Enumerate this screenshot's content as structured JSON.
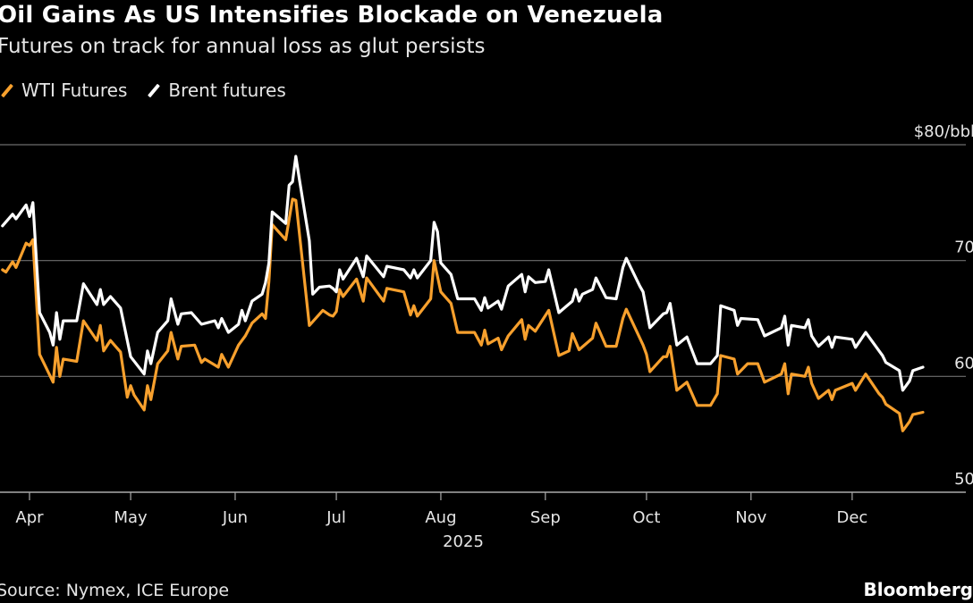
{
  "header": {
    "title": "Oil Gains As US Intensifies Blockade on Venezuela",
    "subtitle": "Futures on track for annual loss as glut persists"
  },
  "footer": {
    "source": "Source: Nymex, ICE Europe",
    "brand": "Bloomberg"
  },
  "chart_data": {
    "type": "line",
    "title": "Oil Gains As US Intensifies Blockade on Venezuela",
    "subtitle": "Futures on track for annual loss as glut persists",
    "xlabel": "2025",
    "ylabel": "",
    "y_unit_label": "$80/bbl",
    "ylim": [
      50,
      80
    ],
    "yticks": [
      80,
      70,
      60,
      50
    ],
    "ytick_labels": [
      "$80/bbl",
      "70",
      "60",
      "50"
    ],
    "xlim": [
      "2025-03-24",
      "2025-12-22"
    ],
    "xticks": [
      "2025-04-01",
      "2025-05-01",
      "2025-06-01",
      "2025-07-01",
      "2025-08-01",
      "2025-09-01",
      "2025-10-01",
      "2025-11-01",
      "2025-12-01"
    ],
    "xtick_labels": [
      "Apr",
      "May",
      "Jun",
      "Jul",
      "Aug",
      "Sep",
      "Oct",
      "Nov",
      "Dec"
    ],
    "grid": true,
    "legend_position": "top-left",
    "series": [
      {
        "name": "WTI Futures",
        "color": "#f7a02d",
        "points": [
          [
            "2025-03-24",
            69.2
          ],
          [
            "2025-03-25",
            69.0
          ],
          [
            "2025-03-27",
            69.9
          ],
          [
            "2025-03-28",
            69.4
          ],
          [
            "2025-03-31",
            71.5
          ],
          [
            "2025-04-01",
            71.3
          ],
          [
            "2025-04-02",
            71.8
          ],
          [
            "2025-04-04",
            61.9
          ],
          [
            "2025-04-06",
            60.7
          ],
          [
            "2025-04-08",
            59.5
          ],
          [
            "2025-04-09",
            62.5
          ],
          [
            "2025-04-10",
            60.0
          ],
          [
            "2025-04-11",
            61.5
          ],
          [
            "2025-04-15",
            61.3
          ],
          [
            "2025-04-17",
            64.8
          ],
          [
            "2025-04-21",
            63.1
          ],
          [
            "2025-04-22",
            64.4
          ],
          [
            "2025-04-23",
            62.2
          ],
          [
            "2025-04-25",
            63.1
          ],
          [
            "2025-04-28",
            62.1
          ],
          [
            "2025-04-30",
            58.2
          ],
          [
            "2025-05-01",
            59.2
          ],
          [
            "2025-05-02",
            58.4
          ],
          [
            "2025-05-05",
            57.1
          ],
          [
            "2025-05-06",
            59.2
          ],
          [
            "2025-05-07",
            58.0
          ],
          [
            "2025-05-09",
            61.1
          ],
          [
            "2025-05-12",
            62.2
          ],
          [
            "2025-05-13",
            63.8
          ],
          [
            "2025-05-15",
            61.5
          ],
          [
            "2025-05-16",
            62.6
          ],
          [
            "2025-05-20",
            62.7
          ],
          [
            "2025-05-22",
            61.2
          ],
          [
            "2025-05-23",
            61.5
          ],
          [
            "2025-05-27",
            60.8
          ],
          [
            "2025-05-28",
            61.9
          ],
          [
            "2025-05-30",
            60.8
          ],
          [
            "2025-06-02",
            62.7
          ],
          [
            "2025-06-04",
            63.5
          ],
          [
            "2025-06-06",
            64.6
          ],
          [
            "2025-06-09",
            65.4
          ],
          [
            "2025-06-10",
            65.0
          ],
          [
            "2025-06-11",
            68.2
          ],
          [
            "2025-06-12",
            73.1
          ],
          [
            "2025-06-16",
            71.8
          ],
          [
            "2025-06-18",
            75.3
          ],
          [
            "2025-06-19",
            75.2
          ],
          [
            "2025-06-23",
            64.4
          ],
          [
            "2025-06-27",
            65.7
          ],
          [
            "2025-06-29",
            65.3
          ],
          [
            "2025-06-30",
            65.2
          ],
          [
            "2025-07-01",
            65.6
          ],
          [
            "2025-07-02",
            67.5
          ],
          [
            "2025-07-03",
            66.9
          ],
          [
            "2025-07-07",
            68.4
          ],
          [
            "2025-07-09",
            66.5
          ],
          [
            "2025-07-10",
            68.5
          ],
          [
            "2025-07-15",
            66.5
          ],
          [
            "2025-07-16",
            67.6
          ],
          [
            "2025-07-21",
            67.3
          ],
          [
            "2025-07-23",
            65.3
          ],
          [
            "2025-07-24",
            66.1
          ],
          [
            "2025-07-25",
            65.2
          ],
          [
            "2025-07-29",
            66.7
          ],
          [
            "2025-07-30",
            70.0
          ],
          [
            "2025-08-01",
            67.3
          ],
          [
            "2025-08-04",
            66.3
          ],
          [
            "2025-08-06",
            63.8
          ],
          [
            "2025-08-11",
            63.8
          ],
          [
            "2025-08-13",
            62.7
          ],
          [
            "2025-08-14",
            64.0
          ],
          [
            "2025-08-15",
            62.8
          ],
          [
            "2025-08-18",
            63.3
          ],
          [
            "2025-08-19",
            62.3
          ],
          [
            "2025-08-21",
            63.5
          ],
          [
            "2025-08-25",
            64.9
          ],
          [
            "2025-08-26",
            63.2
          ],
          [
            "2025-08-27",
            64.4
          ],
          [
            "2025-08-29",
            63.9
          ],
          [
            "2025-09-02",
            65.7
          ],
          [
            "2025-09-05",
            61.8
          ],
          [
            "2025-09-08",
            62.2
          ],
          [
            "2025-09-09",
            63.7
          ],
          [
            "2025-09-11",
            62.3
          ],
          [
            "2025-09-15",
            63.3
          ],
          [
            "2025-09-16",
            64.6
          ],
          [
            "2025-09-19",
            62.6
          ],
          [
            "2025-09-22",
            62.6
          ],
          [
            "2025-09-24",
            65.0
          ],
          [
            "2025-09-25",
            65.8
          ],
          [
            "2025-09-30",
            62.7
          ],
          [
            "2025-10-01",
            61.9
          ],
          [
            "2025-10-02",
            60.4
          ],
          [
            "2025-10-06",
            61.7
          ],
          [
            "2025-10-07",
            61.7
          ],
          [
            "2025-10-08",
            62.6
          ],
          [
            "2025-10-10",
            58.8
          ],
          [
            "2025-10-13",
            59.5
          ],
          [
            "2025-10-16",
            57.5
          ],
          [
            "2025-10-20",
            57.5
          ],
          [
            "2025-10-22",
            58.5
          ],
          [
            "2025-10-23",
            61.8
          ],
          [
            "2025-10-27",
            61.5
          ],
          [
            "2025-10-28",
            60.2
          ],
          [
            "2025-10-31",
            61.1
          ],
          [
            "2025-11-03",
            61.1
          ],
          [
            "2025-11-05",
            59.5
          ],
          [
            "2025-11-10",
            60.2
          ],
          [
            "2025-11-11",
            61.1
          ],
          [
            "2025-11-12",
            58.5
          ],
          [
            "2025-11-13",
            60.2
          ],
          [
            "2025-11-17",
            60.0
          ],
          [
            "2025-11-18",
            60.8
          ],
          [
            "2025-11-19",
            59.4
          ],
          [
            "2025-11-21",
            58.1
          ],
          [
            "2025-11-24",
            58.8
          ],
          [
            "2025-11-25",
            58.0
          ],
          [
            "2025-11-26",
            58.8
          ],
          [
            "2025-12-01",
            59.4
          ],
          [
            "2025-12-02",
            58.8
          ],
          [
            "2025-12-05",
            60.2
          ],
          [
            "2025-12-09",
            58.5
          ],
          [
            "2025-12-10",
            58.2
          ],
          [
            "2025-12-11",
            57.6
          ],
          [
            "2025-12-15",
            56.8
          ],
          [
            "2025-12-16",
            55.3
          ],
          [
            "2025-12-18",
            56.1
          ],
          [
            "2025-12-19",
            56.7
          ],
          [
            "2025-12-22",
            56.9
          ]
        ]
      },
      {
        "name": "Brent futures",
        "color": "#ffffff",
        "points": [
          [
            "2025-03-24",
            73.0
          ],
          [
            "2025-03-27",
            74.0
          ],
          [
            "2025-03-28",
            73.6
          ],
          [
            "2025-03-31",
            74.8
          ],
          [
            "2025-04-01",
            73.8
          ],
          [
            "2025-04-02",
            75.0
          ],
          [
            "2025-04-04",
            65.5
          ],
          [
            "2025-04-07",
            63.8
          ],
          [
            "2025-04-08",
            62.7
          ],
          [
            "2025-04-09",
            65.5
          ],
          [
            "2025-04-10",
            63.2
          ],
          [
            "2025-04-11",
            64.8
          ],
          [
            "2025-04-15",
            64.8
          ],
          [
            "2025-04-17",
            68.0
          ],
          [
            "2025-04-21",
            66.2
          ],
          [
            "2025-04-22",
            67.5
          ],
          [
            "2025-04-23",
            66.2
          ],
          [
            "2025-04-25",
            66.9
          ],
          [
            "2025-04-28",
            65.9
          ],
          [
            "2025-05-01",
            61.7
          ],
          [
            "2025-05-05",
            60.2
          ],
          [
            "2025-05-06",
            62.2
          ],
          [
            "2025-05-07",
            61.1
          ],
          [
            "2025-05-09",
            63.8
          ],
          [
            "2025-05-12",
            64.8
          ],
          [
            "2025-05-13",
            66.7
          ],
          [
            "2025-05-15",
            64.5
          ],
          [
            "2025-05-16",
            65.4
          ],
          [
            "2025-05-19",
            65.5
          ],
          [
            "2025-05-22",
            64.5
          ],
          [
            "2025-05-26",
            64.8
          ],
          [
            "2025-05-27",
            64.2
          ],
          [
            "2025-05-28",
            65.0
          ],
          [
            "2025-05-30",
            63.8
          ],
          [
            "2025-06-02",
            64.5
          ],
          [
            "2025-06-03",
            65.7
          ],
          [
            "2025-06-04",
            64.8
          ],
          [
            "2025-06-06",
            66.5
          ],
          [
            "2025-06-09",
            67.1
          ],
          [
            "2025-06-10",
            68.1
          ],
          [
            "2025-06-11",
            69.8
          ],
          [
            "2025-06-12",
            74.2
          ],
          [
            "2025-06-16",
            73.2
          ],
          [
            "2025-06-17",
            76.5
          ],
          [
            "2025-06-18",
            76.8
          ],
          [
            "2025-06-19",
            79.0
          ],
          [
            "2025-06-20",
            77.1
          ],
          [
            "2025-06-23",
            71.7
          ],
          [
            "2025-06-24",
            67.1
          ],
          [
            "2025-06-26",
            67.7
          ],
          [
            "2025-06-29",
            67.8
          ],
          [
            "2025-06-30",
            67.6
          ],
          [
            "2025-07-01",
            67.3
          ],
          [
            "2025-07-02",
            69.2
          ],
          [
            "2025-07-03",
            68.4
          ],
          [
            "2025-07-07",
            70.2
          ],
          [
            "2025-07-09",
            68.6
          ],
          [
            "2025-07-10",
            70.4
          ],
          [
            "2025-07-15",
            68.6
          ],
          [
            "2025-07-16",
            69.5
          ],
          [
            "2025-07-21",
            69.2
          ],
          [
            "2025-07-23",
            68.5
          ],
          [
            "2025-07-24",
            69.2
          ],
          [
            "2025-07-25",
            68.5
          ],
          [
            "2025-07-29",
            70.0
          ],
          [
            "2025-07-30",
            73.3
          ],
          [
            "2025-07-31",
            72.5
          ],
          [
            "2025-08-01",
            69.8
          ],
          [
            "2025-08-04",
            68.8
          ],
          [
            "2025-08-06",
            66.7
          ],
          [
            "2025-08-11",
            66.7
          ],
          [
            "2025-08-13",
            65.7
          ],
          [
            "2025-08-14",
            66.8
          ],
          [
            "2025-08-15",
            65.9
          ],
          [
            "2025-08-18",
            66.5
          ],
          [
            "2025-08-19",
            65.8
          ],
          [
            "2025-08-21",
            67.8
          ],
          [
            "2025-08-25",
            68.8
          ],
          [
            "2025-08-26",
            67.3
          ],
          [
            "2025-08-27",
            68.6
          ],
          [
            "2025-08-29",
            68.1
          ],
          [
            "2025-09-01",
            68.2
          ],
          [
            "2025-09-02",
            69.2
          ],
          [
            "2025-09-05",
            65.5
          ],
          [
            "2025-09-09",
            66.5
          ],
          [
            "2025-09-10",
            67.5
          ],
          [
            "2025-09-11",
            66.5
          ],
          [
            "2025-09-12",
            67.1
          ],
          [
            "2025-09-15",
            67.5
          ],
          [
            "2025-09-16",
            68.5
          ],
          [
            "2025-09-19",
            66.8
          ],
          [
            "2025-09-22",
            66.7
          ],
          [
            "2025-09-24",
            69.4
          ],
          [
            "2025-09-25",
            70.2
          ],
          [
            "2025-09-29",
            67.8
          ],
          [
            "2025-09-30",
            67.3
          ],
          [
            "2025-10-02",
            64.2
          ],
          [
            "2025-10-06",
            65.4
          ],
          [
            "2025-10-07",
            65.5
          ],
          [
            "2025-10-08",
            66.3
          ],
          [
            "2025-10-10",
            62.7
          ],
          [
            "2025-10-13",
            63.4
          ],
          [
            "2025-10-16",
            61.1
          ],
          [
            "2025-10-20",
            61.1
          ],
          [
            "2025-10-22",
            61.8
          ],
          [
            "2025-10-23",
            66.1
          ],
          [
            "2025-10-27",
            65.7
          ],
          [
            "2025-10-28",
            64.4
          ],
          [
            "2025-10-29",
            65.0
          ],
          [
            "2025-11-03",
            64.9
          ],
          [
            "2025-11-05",
            63.5
          ],
          [
            "2025-11-10",
            64.2
          ],
          [
            "2025-11-11",
            65.2
          ],
          [
            "2025-11-12",
            62.7
          ],
          [
            "2025-11-13",
            64.4
          ],
          [
            "2025-11-17",
            64.2
          ],
          [
            "2025-11-18",
            64.9
          ],
          [
            "2025-11-19",
            63.5
          ],
          [
            "2025-11-21",
            62.6
          ],
          [
            "2025-11-24",
            63.4
          ],
          [
            "2025-11-25",
            62.5
          ],
          [
            "2025-11-26",
            63.4
          ],
          [
            "2025-12-01",
            63.2
          ],
          [
            "2025-12-02",
            62.5
          ],
          [
            "2025-12-05",
            63.8
          ],
          [
            "2025-12-09",
            62.2
          ],
          [
            "2025-12-10",
            61.8
          ],
          [
            "2025-12-11",
            61.2
          ],
          [
            "2025-12-15",
            60.5
          ],
          [
            "2025-12-16",
            58.8
          ],
          [
            "2025-12-18",
            59.6
          ],
          [
            "2025-12-19",
            60.5
          ],
          [
            "2025-12-22",
            60.8
          ]
        ]
      }
    ]
  }
}
